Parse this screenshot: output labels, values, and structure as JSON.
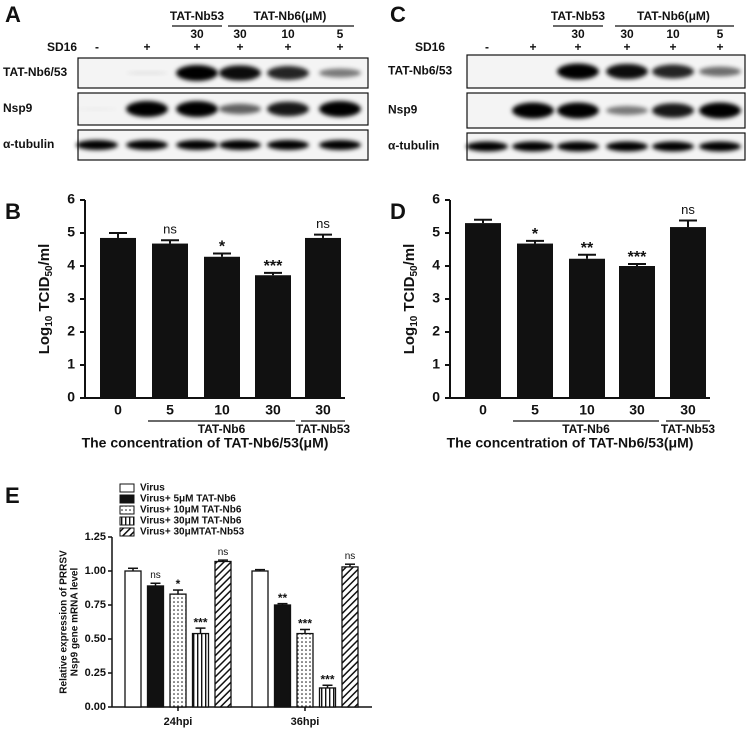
{
  "blots": [
    {
      "letter": "A",
      "groups": [
        "TAT-Nb53",
        "TAT-Nb6(μM)"
      ],
      "doses": [
        "30",
        "30",
        "10",
        "5"
      ],
      "sd16_label": "SD16",
      "sd16": [
        "-",
        "+",
        "+",
        "+",
        "+",
        "+"
      ],
      "rows": [
        "TAT-Nb6/53",
        "Nsp9",
        "α-tubulin"
      ]
    },
    {
      "letter": "C",
      "groups": [
        "TAT-Nb53",
        "TAT-Nb6(μM)"
      ],
      "doses": [
        "30",
        "30",
        "10",
        "5"
      ],
      "sd16_label": "SD16",
      "sd16": [
        "-",
        "+",
        "+",
        "+",
        "+",
        "+"
      ],
      "rows": [
        "TAT-Nb6/53",
        "Nsp9",
        "α-tubulin"
      ]
    }
  ],
  "chart_data": [
    {
      "type": "bar",
      "letter": "B",
      "ylabel": [
        "Log",
        "10",
        " TCID",
        "50",
        "/ml"
      ],
      "xlabel": "The concentration of TAT-Nb6/53(μM)",
      "categories": [
        "0",
        "5",
        "10",
        "30",
        "30"
      ],
      "group_labels": [
        "TAT-Nb6",
        "TAT-Nb53"
      ],
      "values": [
        4.85,
        4.68,
        4.28,
        3.72,
        4.85
      ],
      "errors": [
        0.15,
        0.1,
        0.1,
        0.07,
        0.1
      ],
      "annotations": [
        null,
        "ns",
        "*",
        "***",
        "ns"
      ],
      "color": "#111111",
      "ylim": [
        0,
        6
      ],
      "yticks": [
        0,
        1,
        2,
        3,
        4,
        5,
        6
      ]
    },
    {
      "type": "bar",
      "letter": "D",
      "ylabel": [
        "Log",
        "10",
        " TCID",
        "50",
        "/ml"
      ],
      "xlabel": "The concentration of TAT-Nb6/53(μM)",
      "categories": [
        "0",
        "5",
        "10",
        "30",
        "30"
      ],
      "group_labels": [
        "TAT-Nb6",
        "TAT-Nb53"
      ],
      "values": [
        5.3,
        4.68,
        4.22,
        4.0,
        5.18
      ],
      "errors": [
        0.1,
        0.08,
        0.12,
        0.06,
        0.2
      ],
      "annotations": [
        null,
        "*",
        "**",
        "***",
        "ns"
      ],
      "color": "#111111",
      "ylim": [
        0,
        6
      ],
      "yticks": [
        0,
        1,
        2,
        3,
        4,
        5,
        6
      ]
    },
    {
      "type": "grouped_bar",
      "letter": "E",
      "ylabel": [
        "Relative expression of PRRSV",
        "Nsp9 gene mRNA level"
      ],
      "categories": [
        "24hpi",
        "36hpi"
      ],
      "series": [
        {
          "name": "Virus",
          "color": "#ffffff",
          "pattern": "none",
          "values": [
            1.0,
            1.0
          ],
          "errors": [
            0.02,
            0.01
          ],
          "annotations": [
            null,
            null
          ]
        },
        {
          "name": "Virus+ 5μM TAT-Nb6",
          "color": "#111111",
          "pattern": "none",
          "values": [
            0.89,
            0.75
          ],
          "errors": [
            0.02,
            0.01
          ],
          "annotations": [
            "ns",
            "**"
          ]
        },
        {
          "name": "Virus+ 10μM TAT-Nb6",
          "color": "#ffffff",
          "pattern": "dots",
          "values": [
            0.83,
            0.54
          ],
          "errors": [
            0.03,
            0.03
          ],
          "annotations": [
            "*",
            "***"
          ]
        },
        {
          "name": "Virus+ 30μM TAT-Nb6",
          "color": "#ffffff",
          "pattern": "vertical",
          "values": [
            0.54,
            0.14
          ],
          "errors": [
            0.04,
            0.02
          ],
          "annotations": [
            "***",
            "***"
          ]
        },
        {
          "name": "Virus+ 30μMTAT-Nb53",
          "color": "#ffffff",
          "pattern": "diagonal",
          "values": [
            1.07,
            1.03
          ],
          "errors": [
            0.01,
            0.02
          ],
          "annotations": [
            "ns",
            "ns"
          ]
        }
      ],
      "ylim": [
        0,
        1.25
      ],
      "yticks": [
        {
          "value": 0,
          "label": "0.00"
        },
        0.25,
        {
          "value": 0.5,
          "label": "0.50"
        },
        0.75,
        {
          "value": 1,
          "label": "1.00"
        },
        1.25
      ]
    }
  ]
}
